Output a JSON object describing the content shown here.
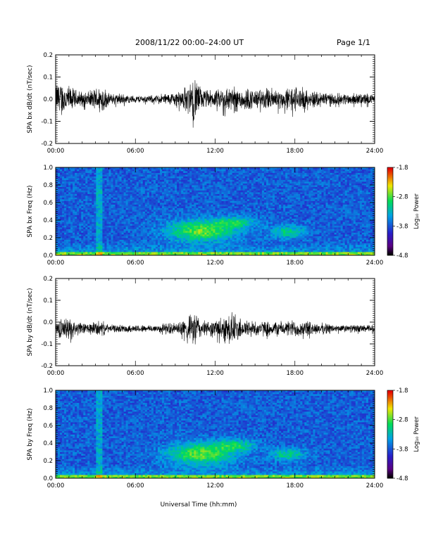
{
  "header": {
    "title": "2008/11/22  00:00–24:00 UT",
    "page": "Page 1/1"
  },
  "chart_data": [
    {
      "id": "bx_ts",
      "type": "line",
      "ylabel": "SPA bx dB/dt (nT/sec)",
      "xticks": [
        "00:00",
        "06:00",
        "12:00",
        "18:00",
        "24:00"
      ],
      "xlim": [
        0,
        24
      ],
      "ylim": [
        -0.2,
        0.2
      ],
      "yticks": [
        -0.2,
        -0.1,
        0.0,
        0.1,
        0.2
      ],
      "ytick_labels": [
        "-0.2",
        "-0.1",
        "0.0",
        "0.1",
        "0.2"
      ],
      "baseline": 0.0,
      "x": [
        0.5,
        1.0,
        1.5,
        2.0,
        2.5,
        3.0,
        3.5,
        4.0,
        4.5,
        5.0,
        5.5,
        6.0,
        6.5,
        7.0,
        7.5,
        8.0,
        8.5,
        9.0,
        9.5,
        10.0,
        10.5,
        11.0,
        11.5,
        12.0,
        12.5,
        13.0,
        13.5,
        14.0,
        14.5,
        15.0,
        15.5,
        16.0,
        16.5,
        17.0,
        17.5,
        18.0,
        18.5,
        19.0,
        19.5,
        20.0,
        20.5,
        21.0,
        21.5,
        22.0,
        22.5,
        23.0,
        23.5,
        24.0
      ],
      "amplitude": [
        0.09,
        0.07,
        0.05,
        0.04,
        0.04,
        0.06,
        0.08,
        0.03,
        0.03,
        0.03,
        0.02,
        0.02,
        0.02,
        0.02,
        0.02,
        0.03,
        0.03,
        0.04,
        0.05,
        0.08,
        0.12,
        0.05,
        0.05,
        0.04,
        0.06,
        0.07,
        0.07,
        0.06,
        0.06,
        0.05,
        0.05,
        0.06,
        0.06,
        0.05,
        0.06,
        0.07,
        0.06,
        0.04,
        0.05,
        0.04,
        0.04,
        0.03,
        0.03,
        0.03,
        0.03,
        0.03,
        0.03,
        0.02
      ]
    },
    {
      "id": "bx_spec",
      "type": "heatmap",
      "ylabel": "SPA bx Freq (Hz)",
      "xticks": [
        "00:00",
        "06:00",
        "12:00",
        "18:00",
        "24:00"
      ],
      "xlim": [
        0,
        24
      ],
      "ylim": [
        0.0,
        1.0
      ],
      "yticks": [
        0.0,
        0.2,
        0.4,
        0.6,
        0.8,
        1.0
      ],
      "ytick_labels": [
        "0.0",
        "0.2",
        "0.4",
        "0.6",
        "0.8",
        "1.0"
      ],
      "colorbar": {
        "label": "Log₁₀ Power",
        "range": [
          -4.8,
          -1.8
        ],
        "ticks": [
          "-1.8",
          "-2.8",
          "-3.8",
          "-4.8"
        ]
      }
    },
    {
      "id": "by_ts",
      "type": "line",
      "ylabel": "SPA by dB/dt (nT/sec)",
      "xticks": [
        "00:00",
        "06:00",
        "12:00",
        "18:00",
        "24:00"
      ],
      "xlim": [
        0,
        24
      ],
      "ylim": [
        -0.2,
        0.2
      ],
      "yticks": [
        -0.2,
        -0.1,
        0.0,
        0.1,
        0.2
      ],
      "ytick_labels": [
        "-0.2",
        "-0.1",
        "0.0",
        "0.1",
        "0.2"
      ],
      "baseline": -0.03,
      "x": [
        0.5,
        1.0,
        1.5,
        2.0,
        2.5,
        3.0,
        3.5,
        4.0,
        4.5,
        5.0,
        5.5,
        6.0,
        6.5,
        7.0,
        7.5,
        8.0,
        8.5,
        9.0,
        9.5,
        10.0,
        10.5,
        11.0,
        11.5,
        12.0,
        12.5,
        13.0,
        13.5,
        14.0,
        14.5,
        15.0,
        15.5,
        16.0,
        16.5,
        17.0,
        17.5,
        18.0,
        18.5,
        19.0,
        19.5,
        20.0,
        20.5,
        21.0,
        21.5,
        22.0,
        22.5,
        23.0,
        23.5,
        24.0
      ],
      "amplitude": [
        0.05,
        0.06,
        0.04,
        0.03,
        0.03,
        0.04,
        0.04,
        0.02,
        0.02,
        0.02,
        0.02,
        0.02,
        0.02,
        0.02,
        0.02,
        0.03,
        0.03,
        0.03,
        0.04,
        0.06,
        0.1,
        0.04,
        0.04,
        0.05,
        0.06,
        0.09,
        0.08,
        0.05,
        0.05,
        0.04,
        0.04,
        0.04,
        0.04,
        0.04,
        0.04,
        0.05,
        0.04,
        0.04,
        0.03,
        0.03,
        0.03,
        0.02,
        0.02,
        0.02,
        0.02,
        0.02,
        0.02,
        0.02
      ]
    },
    {
      "id": "by_spec",
      "type": "heatmap",
      "ylabel": "SPA by Freq (Hz)",
      "xticks": [
        "00:00",
        "06:00",
        "12:00",
        "18:00",
        "24:00"
      ],
      "xlim": [
        0,
        24
      ],
      "ylim": [
        0.0,
        1.0
      ],
      "yticks": [
        0.0,
        0.2,
        0.4,
        0.6,
        0.8,
        1.0
      ],
      "ytick_labels": [
        "0.0",
        "0.2",
        "0.4",
        "0.6",
        "0.8",
        "1.0"
      ],
      "colorbar": {
        "label": "Log₁₀ Power",
        "range": [
          -4.8,
          -1.8
        ],
        "ticks": [
          "-1.8",
          "-2.8",
          "-3.8",
          "-4.8"
        ]
      }
    }
  ],
  "footer": {
    "xlabel": "Universal Time (hh:mm)"
  }
}
